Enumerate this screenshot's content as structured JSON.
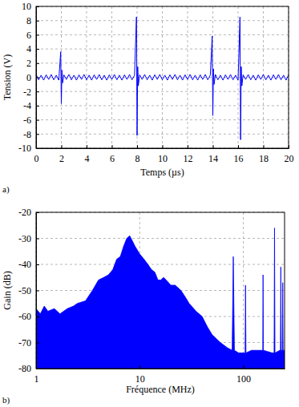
{
  "chart_data": [
    {
      "type": "line",
      "x_label": "Temps (µs)",
      "y_label": "Tension (V)",
      "annotations": [
        "a)"
      ],
      "color": "#0000ff",
      "grid": true,
      "xlim": [
        0,
        20
      ],
      "xticks": [
        0,
        2,
        4,
        6,
        8,
        10,
        12,
        14,
        16,
        18,
        20
      ],
      "ylim": [
        -10,
        10
      ],
      "yticks": [
        -10,
        -8,
        -6,
        -4,
        -2,
        0,
        2,
        4,
        6,
        8,
        10
      ],
      "x": [
        0,
        0.2,
        0.4,
        0.6,
        0.8,
        1,
        1.2,
        1.4,
        1.6,
        1.8,
        1.95,
        2,
        2.05,
        2.1,
        2.2,
        2.4,
        2.6,
        2.8,
        3,
        3.2,
        3.4,
        3.6,
        3.8,
        4,
        4.2,
        4.4,
        4.6,
        4.8,
        5,
        5.2,
        5.4,
        5.6,
        5.8,
        6,
        6.2,
        6.4,
        6.6,
        6.8,
        7,
        7.2,
        7.4,
        7.6,
        7.8,
        7.95,
        8,
        8.05,
        8.1,
        8.2,
        8.4,
        8.6,
        8.8,
        9,
        9.2,
        9.4,
        9.6,
        9.8,
        10,
        10.2,
        10.4,
        10.6,
        10.8,
        11,
        11.2,
        11.4,
        11.6,
        11.8,
        12,
        12.2,
        12.4,
        12.6,
        12.8,
        13,
        13.2,
        13.4,
        13.6,
        13.8,
        13.95,
        14,
        14.05,
        14.1,
        14.2,
        14.4,
        14.6,
        14.8,
        15,
        15.2,
        15.4,
        15.6,
        15.8,
        16,
        16.15,
        16.2,
        16.25,
        16.3,
        16.4,
        16.6,
        16.8,
        17,
        17.2,
        17.4,
        17.6,
        17.8,
        18,
        18.2,
        18.4,
        18.6,
        18.8,
        19,
        19.2,
        19.4,
        19.6,
        19.8,
        20
      ],
      "values": [
        0.4,
        -0.35,
        0.3,
        -0.4,
        0.35,
        -0.3,
        0.4,
        -0.35,
        0.3,
        -0.4,
        3.6,
        -3.7,
        1,
        -0.8,
        0.35,
        -0.3,
        0.4,
        -0.35,
        0.3,
        -0.4,
        0.35,
        -0.3,
        0.4,
        -0.35,
        0.3,
        -0.4,
        0.35,
        -0.3,
        0.4,
        -0.35,
        0.3,
        -0.4,
        0.35,
        -0.3,
        0.4,
        -0.35,
        0.3,
        -0.4,
        0.35,
        -0.3,
        0.4,
        -0.35,
        0.3,
        8.5,
        -8.2,
        1.5,
        -1.2,
        0.35,
        -0.3,
        0.4,
        -0.35,
        0.3,
        -0.4,
        0.35,
        -0.3,
        0.4,
        -0.35,
        0.3,
        -0.4,
        0.35,
        -0.3,
        0.4,
        -0.35,
        0.3,
        -0.4,
        0.35,
        -0.3,
        0.4,
        -0.35,
        0.3,
        -0.4,
        0.35,
        -0.3,
        0.4,
        -0.35,
        0.3,
        5.8,
        -5.4,
        1.2,
        -1,
        0.4,
        -0.35,
        0.3,
        -0.4,
        0.35,
        -0.3,
        0.4,
        -0.35,
        0.3,
        -0.4,
        8.5,
        -8.8,
        1.5,
        -1.2,
        0.35,
        -0.3,
        0.4,
        -0.35,
        0.3,
        -0.4,
        0.35,
        -0.3,
        0.4,
        -0.35,
        0.3,
        -0.4,
        0.35,
        -0.3,
        0.4,
        -0.35,
        0.3,
        -0.4,
        0.35
      ]
    },
    {
      "type": "area",
      "x_label": "Fréquence (MHz)",
      "y_label": "Gain (dB)",
      "annotations": [
        "b)"
      ],
      "color": "#0000ff",
      "grid": true,
      "log": "x",
      "xlim": [
        1,
        250
      ],
      "xticks": [
        1,
        10,
        100
      ],
      "ylim": [
        -80,
        -20
      ],
      "yticks": [
        -80,
        -70,
        -60,
        -50,
        -40,
        -30,
        -20
      ],
      "x": [
        1,
        1.1,
        1.2,
        1.3,
        1.5,
        1.7,
        2,
        2.3,
        2.5,
        3,
        3.5,
        4,
        4.5,
        5,
        5.5,
        6,
        6.5,
        7,
        7.5,
        8,
        8.5,
        9,
        10,
        11,
        12,
        13,
        14,
        15,
        16,
        17,
        18,
        20,
        22,
        25,
        28,
        30,
        35,
        40,
        45,
        50,
        60,
        70,
        78,
        80,
        82,
        90,
        100,
        104,
        105,
        106,
        120,
        150,
        154,
        155,
        156,
        190,
        198,
        200,
        202,
        225,
        228,
        230,
        232,
        238,
        240,
        242,
        250
      ],
      "values": [
        -57,
        -59,
        -56,
        -58,
        -57,
        -59,
        -57,
        -56,
        -55,
        -54,
        -50,
        -46,
        -45,
        -44,
        -42,
        -38,
        -37,
        -33,
        -30,
        -29,
        -31,
        -33,
        -36,
        -38,
        -40,
        -42,
        -43,
        -46,
        -46,
        -45,
        -46,
        -48,
        -48,
        -50,
        -53,
        -55,
        -58,
        -60,
        -64,
        -67,
        -70,
        -72,
        -73,
        -37,
        -73,
        -74,
        -74,
        -74,
        -48,
        -74,
        -73,
        -73,
        -73,
        -44,
        -73,
        -74,
        -74,
        -26,
        -74,
        -73,
        -73,
        -41,
        -73,
        -73,
        -47,
        -73,
        -73
      ]
    }
  ]
}
